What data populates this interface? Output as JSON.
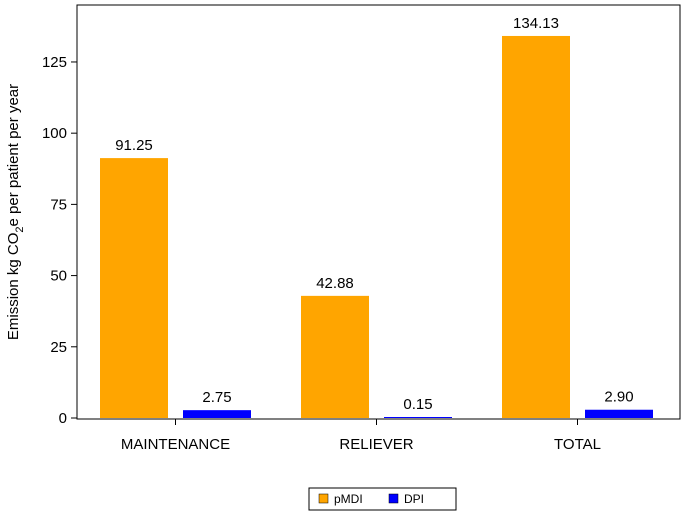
{
  "chart_data": {
    "type": "bar",
    "categories": [
      "MAINTENANCE",
      "RELIEVER",
      "TOTAL"
    ],
    "series": [
      {
        "name": "pMDI",
        "color": "#FFA500",
        "values": [
          91.25,
          42.88,
          134.13
        ],
        "labels": [
          "91.25",
          "42.88",
          "134.13"
        ]
      },
      {
        "name": "DPI",
        "color": "#0000FF",
        "values": [
          2.75,
          0.15,
          2.9
        ],
        "labels": [
          "2.75",
          "0.15",
          "2.90"
        ]
      }
    ],
    "ylabel_parts": [
      "Emission kg CO",
      "2",
      "e per patient per year"
    ],
    "ylim": [
      0,
      145
    ],
    "yticks": [
      0,
      25,
      50,
      75,
      100,
      125
    ],
    "ytick_labels": [
      "0",
      "25",
      "50",
      "75",
      "100",
      "125"
    ],
    "grid": false,
    "legend_position": "bottom-center"
  }
}
